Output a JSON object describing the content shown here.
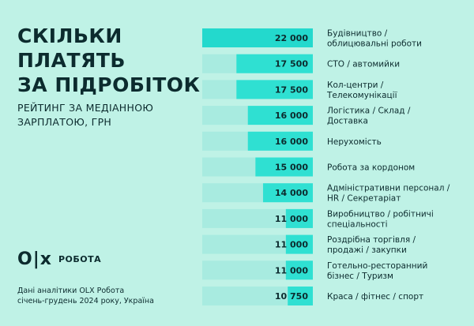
{
  "header": {
    "title_lines": [
      "СКІЛЬКИ",
      "ПЛАТЯТЬ",
      "ЗА ПІДРОБІТОК"
    ],
    "subtitle_lines": [
      "РЕЙТИНГ ЗА МЕДІАННОЮ",
      "ЗАРПЛАТОЮ, ГРН"
    ]
  },
  "brand": {
    "logo_mark": "O|x",
    "logo_text": "РОБОТА"
  },
  "footer": {
    "source_lines": [
      "Дані аналітики OLX Робота",
      "січень-грудень 2024 року, Україна"
    ]
  },
  "colors": {
    "background": "#bff2e6",
    "track": "#a8ebe0",
    "bar_top": "#23d9cd",
    "bar": "#2fe0d2",
    "text": "#0c2b2e"
  },
  "chart_data": {
    "type": "bar",
    "orientation": "horizontal",
    "categories": [
      [
        "Будівництво /",
        "облицювальні роботи"
      ],
      [
        "СТО / автомийки"
      ],
      [
        "Кол-центри /",
        "Телекомунікації"
      ],
      [
        "Логістика / Склад /",
        "Доставка"
      ],
      [
        "Нерухомість"
      ],
      [
        "Робота за кордоном"
      ],
      [
        "Адміністративни персонал /",
        "HR / Секретаріат"
      ],
      [
        "Виробництво / робітничі",
        "спеціальності"
      ],
      [
        "Роздрібна торгівля /",
        "продажі / закупки"
      ],
      [
        "Готельно-ресторанний",
        "бізнес / Туризм"
      ],
      [
        "Краса / фітнес / спорт"
      ]
    ],
    "values": [
      22000,
      17500,
      17500,
      16000,
      16000,
      15000,
      14000,
      11000,
      11000,
      11000,
      10750
    ],
    "value_labels": [
      "22 000",
      "17 500",
      "17 500",
      "16 000",
      "16 000",
      "15 000",
      "14 000",
      "11 000",
      "11 000",
      "11 000",
      "10 750"
    ],
    "grid": false,
    "legend": "none"
  }
}
